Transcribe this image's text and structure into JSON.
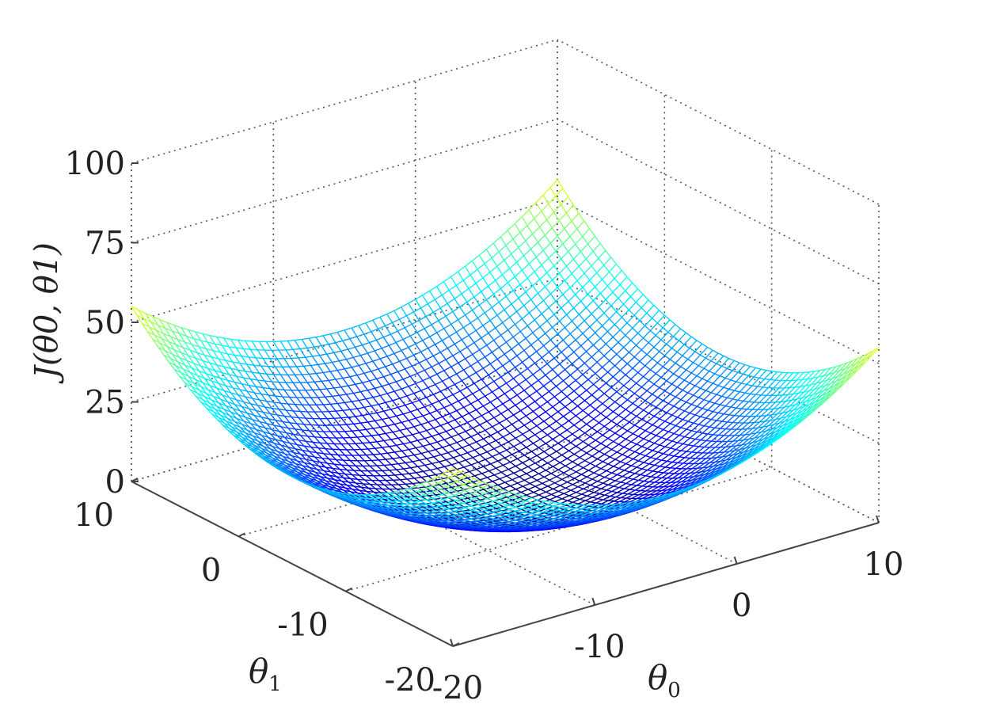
{
  "chart_data": {
    "type": "surface",
    "function": "J(θ0, θ1) — bowl shaped (quadratic) cost surface",
    "x_axis": {
      "label_base": "θ",
      "label_sub": "0",
      "ticks": [
        "-20",
        "-10",
        "0",
        "10"
      ],
      "range": [
        -20,
        10
      ]
    },
    "y_axis": {
      "label_base": "θ",
      "label_sub": "1",
      "ticks": [
        "-20",
        "-10",
        "0",
        "10"
      ],
      "range": [
        -20,
        10
      ]
    },
    "z_axis": {
      "label": "J(θ0, θ1)",
      "ticks": [
        "0",
        "25",
        "50",
        "75",
        "100"
      ],
      "range": [
        0,
        100
      ]
    },
    "corner_values": [
      {
        "theta0": -20,
        "theta1": 10,
        "J": 49
      },
      {
        "theta0": 10,
        "theta1": 10,
        "J": 91
      },
      {
        "theta0": 10,
        "theta1": -20,
        "J": 61
      },
      {
        "theta0": -20,
        "theta1": -20,
        "J": 21
      }
    ],
    "minimum": {
      "theta0": -5,
      "theta1": -5,
      "J": 0
    },
    "colormap": "jet",
    "grid": true
  }
}
